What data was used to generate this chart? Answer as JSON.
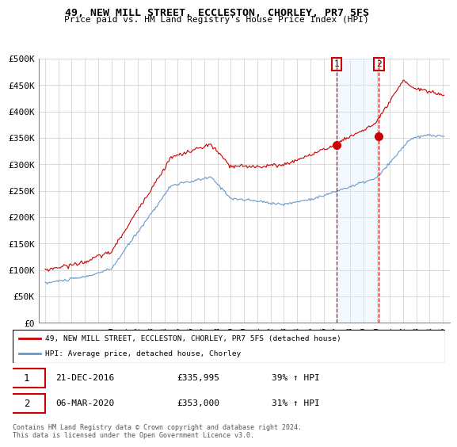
{
  "title": "49, NEW MILL STREET, ECCLESTON, CHORLEY, PR7 5FS",
  "subtitle": "Price paid vs. HM Land Registry's House Price Index (HPI)",
  "legend_line1": "49, NEW MILL STREET, ECCLESTON, CHORLEY, PR7 5FS (detached house)",
  "legend_line2": "HPI: Average price, detached house, Chorley",
  "annotation1_label": "1",
  "annotation1_date": "21-DEC-2016",
  "annotation1_price": "£335,995",
  "annotation1_hpi": "39% ↑ HPI",
  "annotation2_label": "2",
  "annotation2_date": "06-MAR-2020",
  "annotation2_price": "£353,000",
  "annotation2_hpi": "31% ↑ HPI",
  "footer": "Contains HM Land Registry data © Crown copyright and database right 2024.\nThis data is licensed under the Open Government Licence v3.0.",
  "sale1_year": 2016.97,
  "sale1_price": 335995,
  "sale2_year": 2020.17,
  "sale2_price": 353000,
  "property_color": "#cc0000",
  "hpi_color": "#6699cc",
  "shade_color": "#ddeeff",
  "annotation_color": "#cc0000",
  "ylim_min": 0,
  "ylim_max": 500000,
  "yticks": [
    0,
    50000,
    100000,
    150000,
    200000,
    250000,
    300000,
    350000,
    400000,
    450000,
    500000
  ],
  "ytick_labels": [
    "£0",
    "£50K",
    "£100K",
    "£150K",
    "£200K",
    "£250K",
    "£300K",
    "£350K",
    "£400K",
    "£450K",
    "£500K"
  ],
  "xtick_years": [
    1995,
    1996,
    1997,
    1998,
    1999,
    2000,
    2001,
    2002,
    2003,
    2004,
    2005,
    2006,
    2007,
    2008,
    2009,
    2010,
    2011,
    2012,
    2013,
    2014,
    2015,
    2016,
    2017,
    2018,
    2019,
    2020,
    2021,
    2022,
    2023,
    2024,
    2025
  ],
  "xlim_min": 1994.5,
  "xlim_max": 2025.5
}
